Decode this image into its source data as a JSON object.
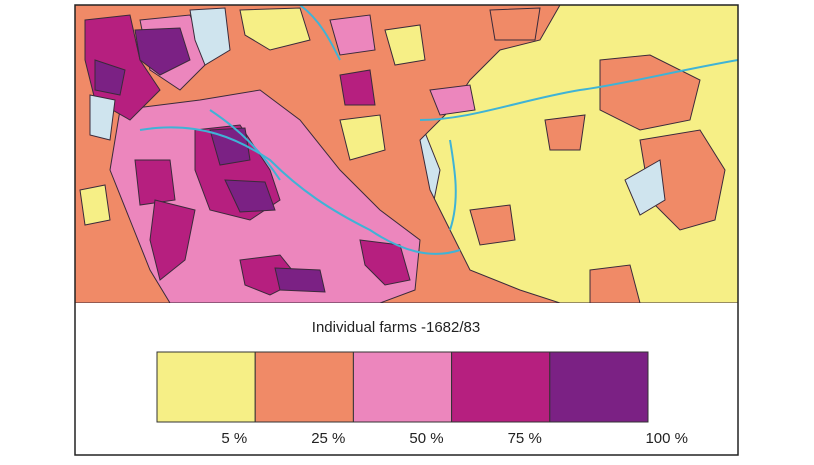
{
  "title": "Individual farms -1682/83",
  "legend": {
    "colors": [
      "#f6ef86",
      "#f08a67",
      "#ec86bd",
      "#b61f7f",
      "#7b2184"
    ],
    "labels": [
      "5 %",
      "25 %",
      "50 %",
      "75 %",
      "100 %"
    ]
  }
}
